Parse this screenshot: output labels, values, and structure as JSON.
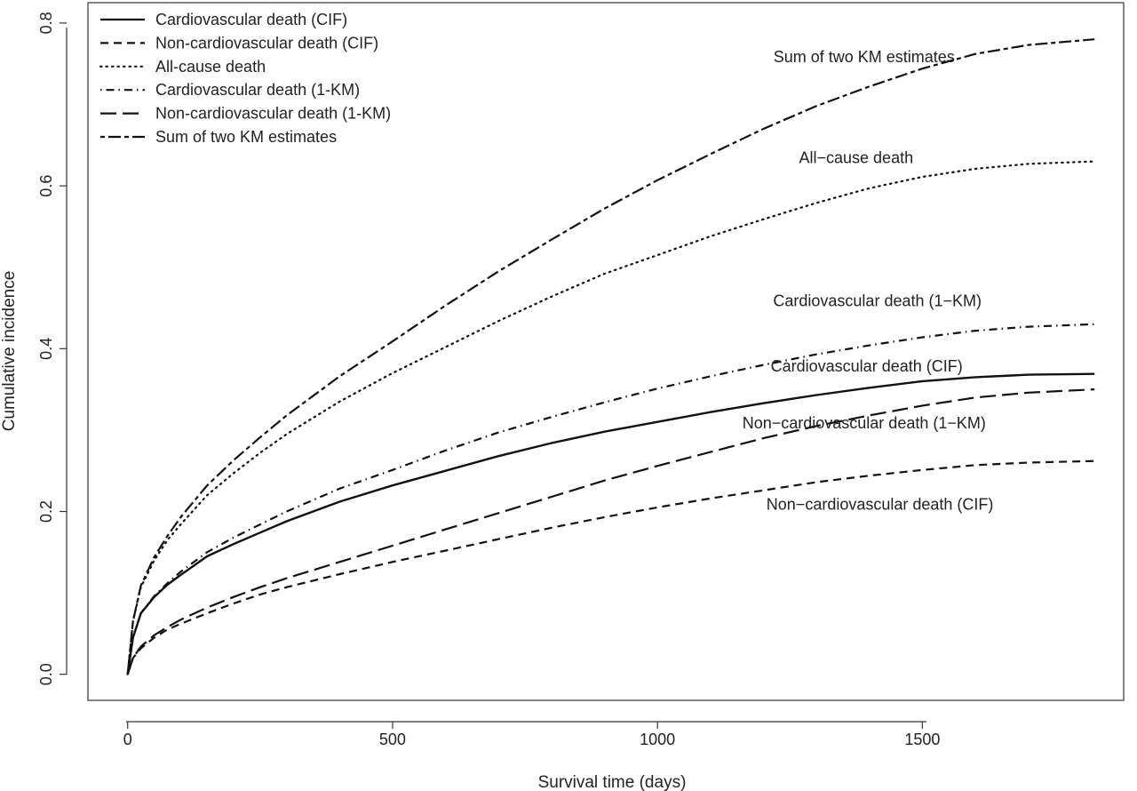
{
  "chart_data": {
    "type": "line",
    "title": "",
    "xlabel": "Survival time (days)",
    "ylabel": "Cumulative incidence",
    "xlim": [
      -75,
      1880
    ],
    "ylim": [
      -0.032,
      0.825
    ],
    "xticks": [
      {
        "value": 0,
        "label": "0"
      },
      {
        "value": 500,
        "label": "500"
      },
      {
        "value": 1000,
        "label": "1000"
      },
      {
        "value": 1500,
        "label": "1500"
      }
    ],
    "yticks": [
      {
        "value": 0.0,
        "label": "0.0"
      },
      {
        "value": 0.2,
        "label": "0.2"
      },
      {
        "value": 0.4,
        "label": "0.4"
      },
      {
        "value": 0.6,
        "label": "0.6"
      },
      {
        "value": 0.8,
        "label": "0.8"
      }
    ],
    "grid": false,
    "legend_position": "top-left",
    "line_color": "#111111",
    "series": [
      {
        "name": "Cardiovascular death (CIF)",
        "dash": "solid",
        "curve_label": "Cardiovascular death (CIF)",
        "label_at": [
          1395,
          0.372
        ],
        "x": [
          0,
          10,
          25,
          50,
          75,
          100,
          150,
          200,
          250,
          300,
          400,
          500,
          600,
          700,
          800,
          900,
          1000,
          1100,
          1200,
          1300,
          1400,
          1500,
          1600,
          1700,
          1825
        ],
        "y": [
          0,
          0.045,
          0.075,
          0.095,
          0.11,
          0.122,
          0.145,
          0.16,
          0.174,
          0.188,
          0.212,
          0.232,
          0.25,
          0.268,
          0.284,
          0.298,
          0.31,
          0.322,
          0.333,
          0.343,
          0.352,
          0.36,
          0.365,
          0.368,
          0.369
        ]
      },
      {
        "name": "Non-cardiovascular death (CIF)",
        "dash": "dashed",
        "curve_label": "Non−cardiovascular death (CIF)",
        "label_at": [
          1420,
          0.202
        ],
        "x": [
          0,
          10,
          25,
          50,
          75,
          100,
          150,
          200,
          250,
          300,
          400,
          500,
          600,
          700,
          800,
          900,
          1000,
          1100,
          1200,
          1300,
          1400,
          1500,
          1600,
          1700,
          1825
        ],
        "y": [
          0,
          0.02,
          0.032,
          0.045,
          0.055,
          0.062,
          0.075,
          0.087,
          0.098,
          0.107,
          0.123,
          0.138,
          0.152,
          0.166,
          0.18,
          0.193,
          0.205,
          0.216,
          0.226,
          0.236,
          0.244,
          0.251,
          0.257,
          0.26,
          0.262
        ]
      },
      {
        "name": "All-cause death",
        "dash": "dotted",
        "curve_label": "All−cause death",
        "label_at": [
          1375,
          0.628
        ],
        "x": [
          0,
          10,
          25,
          50,
          75,
          100,
          150,
          200,
          250,
          300,
          400,
          500,
          600,
          700,
          800,
          900,
          1000,
          1100,
          1200,
          1300,
          1400,
          1500,
          1600,
          1700,
          1825
        ],
        "y": [
          0,
          0.065,
          0.107,
          0.14,
          0.165,
          0.184,
          0.22,
          0.247,
          0.272,
          0.295,
          0.335,
          0.37,
          0.402,
          0.434,
          0.464,
          0.492,
          0.515,
          0.538,
          0.559,
          0.579,
          0.597,
          0.611,
          0.621,
          0.627,
          0.63
        ]
      },
      {
        "name": "Cardiovascular death (1-KM)",
        "dash": "dotdash",
        "curve_label": "Cardiovascular death (1−KM)",
        "label_at": [
          1415,
          0.452
        ],
        "x": [
          0,
          10,
          25,
          50,
          75,
          100,
          150,
          200,
          250,
          300,
          400,
          500,
          600,
          700,
          800,
          900,
          1000,
          1100,
          1200,
          1300,
          1400,
          1500,
          1600,
          1700,
          1825
        ],
        "y": [
          0,
          0.045,
          0.075,
          0.096,
          0.112,
          0.126,
          0.15,
          0.168,
          0.184,
          0.2,
          0.228,
          0.251,
          0.275,
          0.297,
          0.316,
          0.334,
          0.351,
          0.366,
          0.38,
          0.393,
          0.404,
          0.414,
          0.422,
          0.427,
          0.43
        ]
      },
      {
        "name": "Non-cardiovascular death (1-KM)",
        "dash": "longdash",
        "curve_label": "Non−cardiovascular death (1−KM)",
        "label_at": [
          1390,
          0.302
        ],
        "x": [
          0,
          10,
          25,
          50,
          75,
          100,
          150,
          200,
          250,
          300,
          400,
          500,
          600,
          700,
          800,
          900,
          1000,
          1100,
          1200,
          1300,
          1400,
          1500,
          1600,
          1700,
          1825
        ],
        "y": [
          0,
          0.02,
          0.034,
          0.048,
          0.058,
          0.067,
          0.082,
          0.095,
          0.107,
          0.118,
          0.138,
          0.158,
          0.178,
          0.198,
          0.218,
          0.238,
          0.256,
          0.273,
          0.29,
          0.305,
          0.318,
          0.33,
          0.34,
          0.346,
          0.35
        ]
      },
      {
        "name": "Sum of two KM estimates",
        "dash": "twodash",
        "curve_label": "Sum of two KM estimates",
        "label_at": [
          1390,
          0.752
        ],
        "x": [
          0,
          10,
          25,
          50,
          75,
          100,
          150,
          200,
          250,
          300,
          400,
          500,
          600,
          700,
          800,
          900,
          1000,
          1100,
          1200,
          1300,
          1400,
          1500,
          1600,
          1700,
          1825
        ],
        "y": [
          0,
          0.065,
          0.109,
          0.144,
          0.17,
          0.193,
          0.232,
          0.263,
          0.291,
          0.318,
          0.366,
          0.409,
          0.453,
          0.495,
          0.534,
          0.572,
          0.607,
          0.639,
          0.67,
          0.698,
          0.722,
          0.744,
          0.762,
          0.773,
          0.78
        ]
      }
    ]
  }
}
